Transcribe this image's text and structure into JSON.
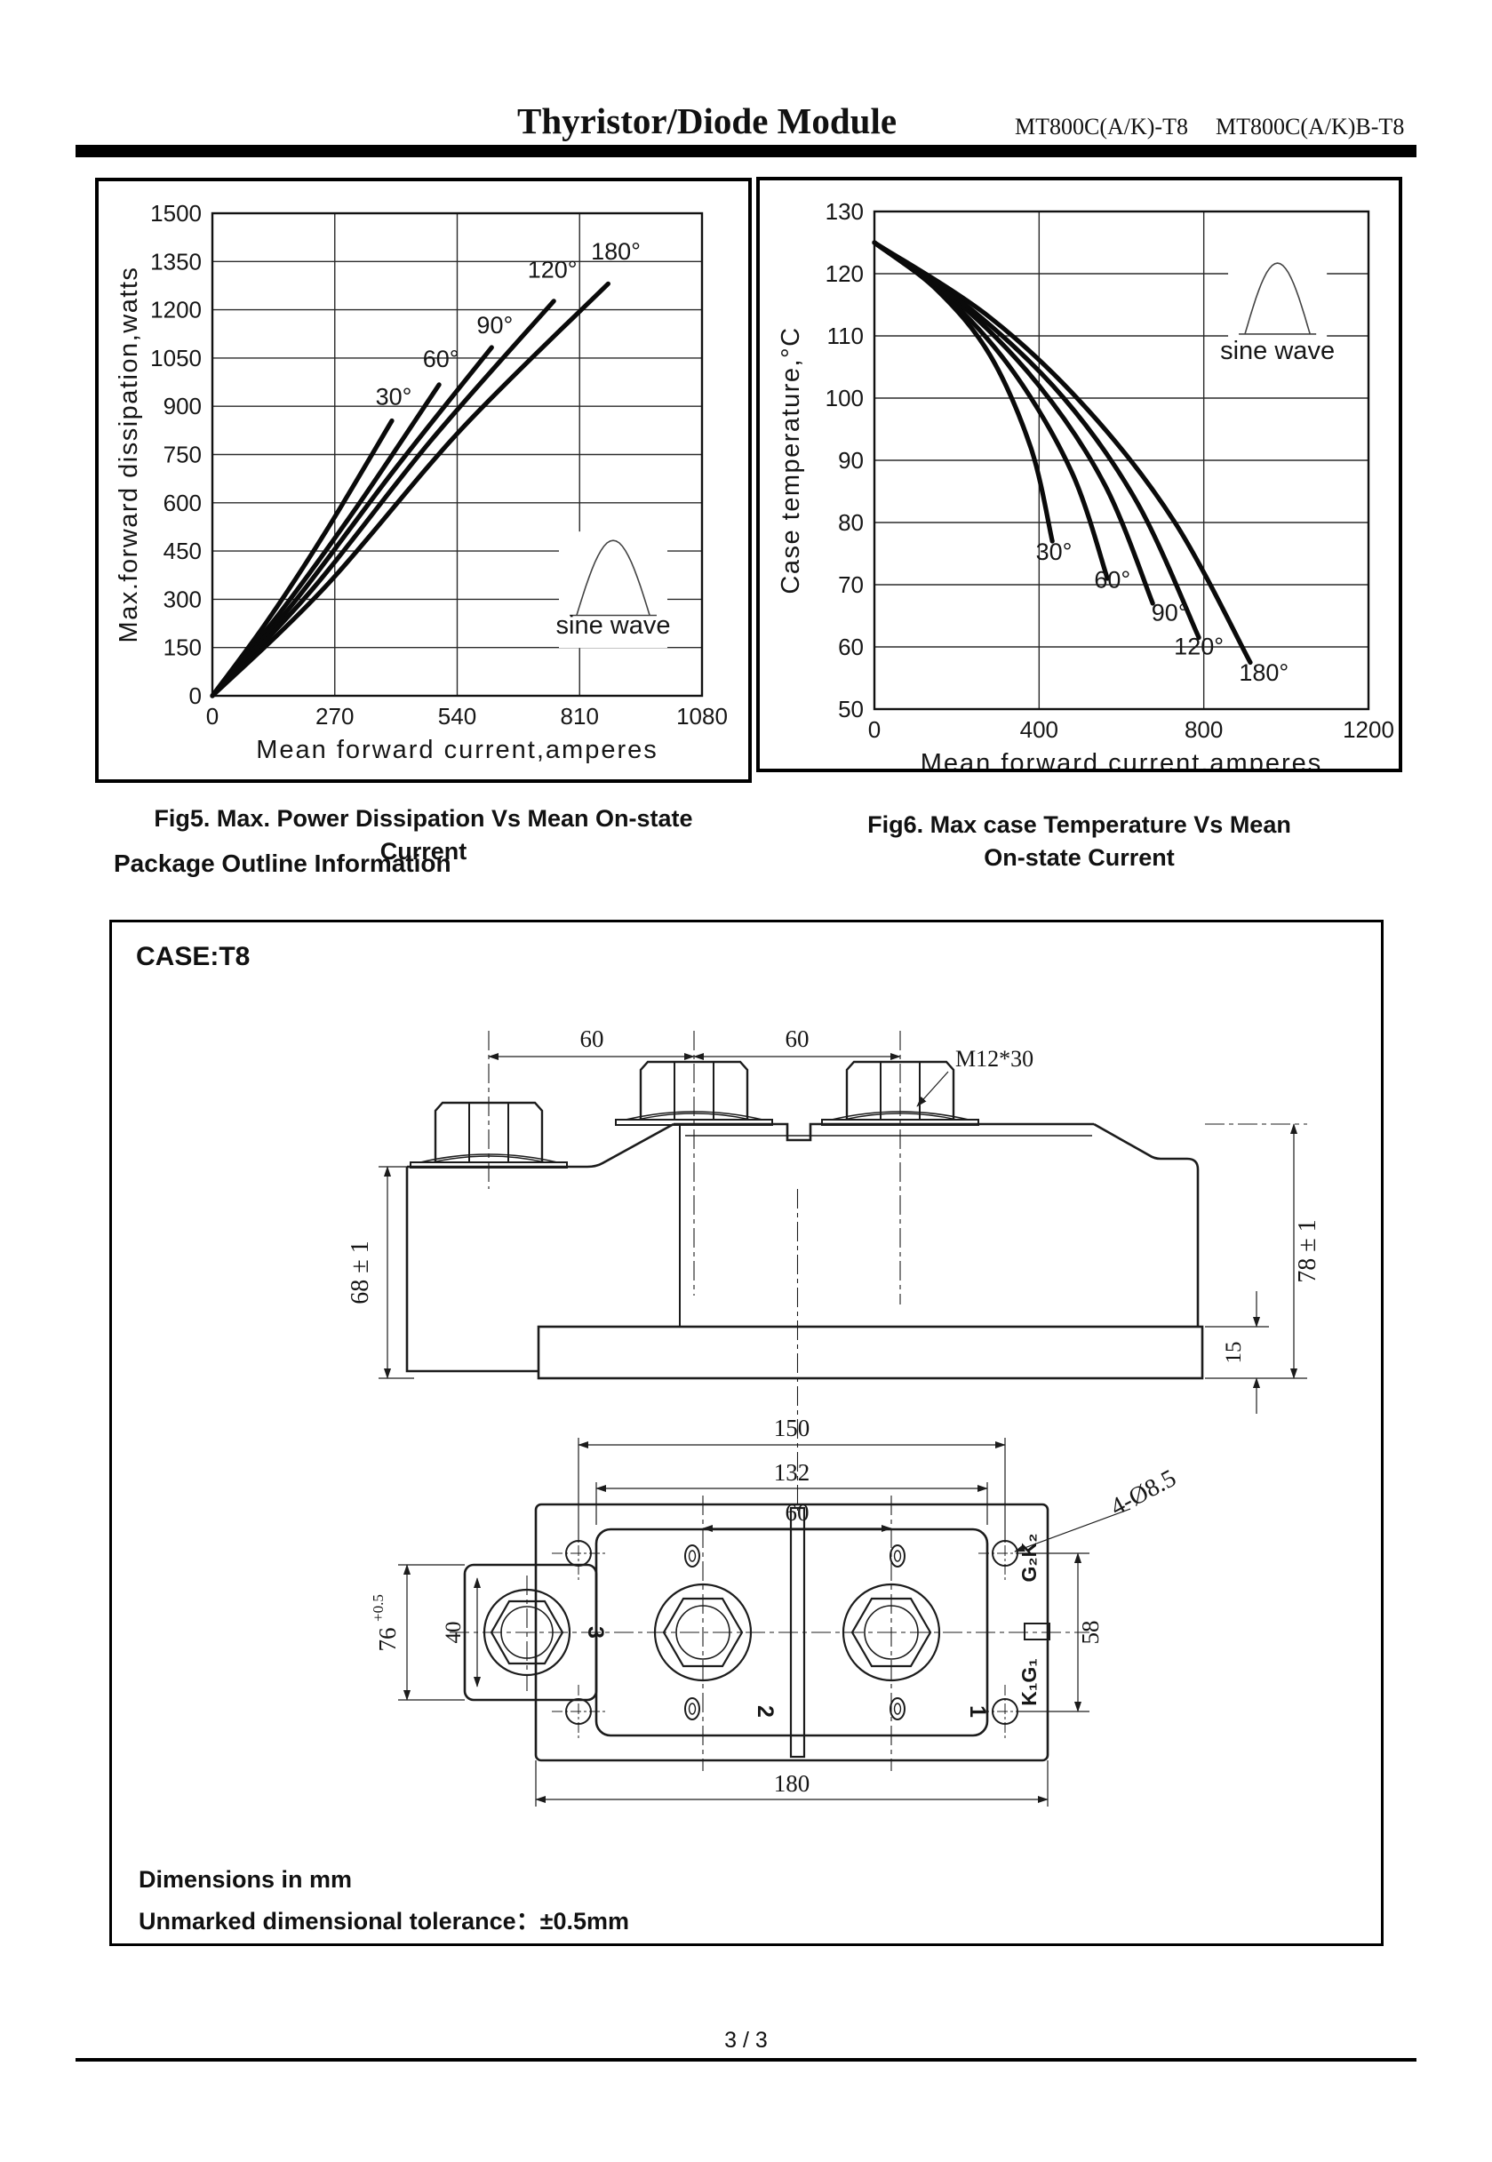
{
  "header": {
    "title": "Thyristor/Diode Module",
    "model1": "MT800C(A/K)-T8",
    "model2": "MT800C(A/K)B-T8"
  },
  "section": {
    "package_heading": "Package Outline Information",
    "case_label": "CASE:T8",
    "note_line1": "Dimensions in mm",
    "note_line2": "Unmarked dimensional tolerance：±0.5mm"
  },
  "drawing": {
    "dim_bolt_spacing_1": "60",
    "dim_bolt_spacing_2": "60",
    "bolt_thread": "M12*30",
    "dim_left_height": "68 ± 1",
    "dim_right_height": "78 ± 1",
    "dim_base_thickness": "15",
    "dim_hole_span": "150",
    "dim_body_width": "132",
    "dim_terminal_spacing": "60",
    "dim_overall_length": "180",
    "dim_hole_vspan": "58",
    "dim_tab_inner": "40",
    "dim_tab_width": "76",
    "dim_tab_tol": "+0.5",
    "holes_note": "4-Ø8.5",
    "terminal_label_top": "G₂K₂",
    "terminal_label_bottom": "K₁G₁",
    "terminal_1": "1",
    "terminal_2": "2",
    "terminal_3": "3"
  },
  "footer": {
    "page": "3 / 3"
  },
  "chart_data": [
    {
      "type": "line",
      "caption": [
        "Fig5. Max. Power Dissipation Vs Mean On-state",
        "Current"
      ],
      "xlabel": "Mean forward current,amperes",
      "ylabel": "Max.forward dissipation,watts",
      "xlim": [
        0,
        1080
      ],
      "ylim": [
        0,
        1500
      ],
      "xticks": [
        0,
        270,
        540,
        810,
        1080
      ],
      "yticks": [
        0,
        150,
        300,
        450,
        600,
        750,
        900,
        1050,
        1200,
        1350,
        1500
      ],
      "grid": true,
      "series": [
        {
          "name": "30°",
          "points": [
            [
              0,
              0
            ],
            [
              120,
              230
            ],
            [
              250,
              510
            ],
            [
              396,
              855
            ]
          ],
          "label_pos": [
            400,
            905
          ]
        },
        {
          "name": "60°",
          "points": [
            [
              0,
              0
            ],
            [
              150,
              260
            ],
            [
              320,
              590
            ],
            [
              500,
              967
            ]
          ],
          "label_pos": [
            504,
            1022
          ]
        },
        {
          "name": "90°",
          "points": [
            [
              0,
              0
            ],
            [
              180,
              290
            ],
            [
              400,
              700
            ],
            [
              616,
              1083
            ]
          ],
          "label_pos": [
            623,
            1127
          ]
        },
        {
          "name": "120°",
          "points": [
            [
              0,
              0
            ],
            [
              220,
              330
            ],
            [
              480,
              790
            ],
            [
              753,
              1227
            ]
          ],
          "label_pos": [
            750,
            1300
          ]
        },
        {
          "name": "180°",
          "points": [
            [
              0,
              0
            ],
            [
              250,
              340
            ],
            [
              550,
              830
            ],
            [
              873,
              1281
            ]
          ],
          "label_pos": [
            890,
            1356
          ]
        }
      ],
      "icon": {
        "label": "sine wave",
        "x": [
          788,
          980
        ],
        "y_base": 250,
        "y_peak": 483,
        "label_xy": [
          884,
          193
        ]
      }
    },
    {
      "type": "line",
      "caption": [
        "Fig6. Max case Temperature Vs Mean",
        "On-state Current"
      ],
      "xlabel": "Mean forward current,amperes",
      "ylabel": "Case temperature,°C",
      "xlim": [
        0,
        1200
      ],
      "ylim": [
        50,
        130
      ],
      "xticks": [
        0,
        400,
        800,
        1200
      ],
      "yticks": [
        50,
        60,
        70,
        80,
        90,
        100,
        110,
        120,
        130
      ],
      "grid": true,
      "series": [
        {
          "name": "30°",
          "points": [
            [
              0,
              125
            ],
            [
              150,
              117.5
            ],
            [
              280,
              107
            ],
            [
              380,
              92
            ],
            [
              432,
              77
            ]
          ],
          "label_pos": [
            436,
            74
          ]
        },
        {
          "name": "60°",
          "points": [
            [
              0,
              125
            ],
            [
              180,
              116
            ],
            [
              340,
              104
            ],
            [
              480,
              88
            ],
            [
              566,
              71
            ]
          ],
          "label_pos": [
            578,
            69.5
          ]
        },
        {
          "name": "90°",
          "points": [
            [
              0,
              125
            ],
            [
              210,
              115
            ],
            [
              400,
              102
            ],
            [
              560,
              86
            ],
            [
              676,
              67
            ]
          ],
          "label_pos": [
            717,
            64.2
          ]
        },
        {
          "name": "120°",
          "points": [
            [
              0,
              125
            ],
            [
              240,
              114
            ],
            [
              460,
              100
            ],
            [
              640,
              83
            ],
            [
              788,
              61.5
            ]
          ],
          "label_pos": [
            788,
            58.8
          ]
        },
        {
          "name": "180°",
          "points": [
            [
              0,
              125
            ],
            [
              280,
              113
            ],
            [
              520,
              98
            ],
            [
              730,
              80
            ],
            [
              913,
              57.5
            ]
          ],
          "label_pos": [
            946,
            54.6
          ]
        }
      ],
      "icon": {
        "label": "sine wave",
        "x": [
          885,
          1073
        ],
        "y_base": 110.3,
        "y_peak": 121.7,
        "label_xy": [
          979,
          106.3
        ]
      }
    }
  ]
}
